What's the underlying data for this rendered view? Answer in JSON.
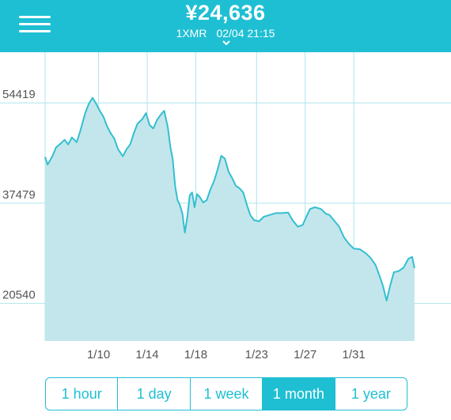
{
  "header": {
    "price": "¥24,636",
    "pair": "1XMR",
    "datetime": "02/04 21:15",
    "icons": {
      "menu": "hamburger-menu-icon",
      "expand": "chevron-down-icon"
    }
  },
  "colors": {
    "accent": "#1fbfd3",
    "line": "#33bfcf",
    "fill": "#c3e6ec",
    "grid": "#aee4ec"
  },
  "chart_data": {
    "type": "area",
    "title": "",
    "xlabel": "",
    "ylabel": "",
    "y_ticks": [
      54419,
      37479,
      20540
    ],
    "x_ticks": [
      "1/10",
      "1/14",
      "1/18",
      "1/23",
      "1/27",
      "1/31"
    ],
    "x_range_days": [
      5.6,
      39.0
    ],
    "ylim": [
      14200,
      63000
    ],
    "grid": true,
    "series": [
      {
        "points": [
          [
            5.6,
            45300
          ],
          [
            5.8,
            44000
          ],
          [
            6.2,
            45400
          ],
          [
            6.5,
            46900
          ],
          [
            6.9,
            47600
          ],
          [
            7.2,
            48200
          ],
          [
            7.5,
            47400
          ],
          [
            7.8,
            48600
          ],
          [
            8.2,
            47800
          ],
          [
            8.5,
            49700
          ],
          [
            8.9,
            52700
          ],
          [
            9.2,
            54300
          ],
          [
            9.5,
            55300
          ],
          [
            9.8,
            54300
          ],
          [
            10.1,
            53100
          ],
          [
            10.4,
            52100
          ],
          [
            10.7,
            50500
          ],
          [
            11.0,
            49300
          ],
          [
            11.3,
            48400
          ],
          [
            11.6,
            46600
          ],
          [
            12.0,
            45400
          ],
          [
            12.3,
            46600
          ],
          [
            12.6,
            47400
          ],
          [
            12.9,
            49300
          ],
          [
            13.2,
            50900
          ],
          [
            13.6,
            51700
          ],
          [
            13.9,
            52700
          ],
          [
            14.2,
            50700
          ],
          [
            14.5,
            50100
          ],
          [
            14.8,
            51500
          ],
          [
            15.1,
            52400
          ],
          [
            15.4,
            53100
          ],
          [
            15.7,
            50300
          ],
          [
            15.9,
            47100
          ],
          [
            16.1,
            44900
          ],
          [
            16.3,
            40400
          ],
          [
            16.5,
            38000
          ],
          [
            16.7,
            37100
          ],
          [
            16.9,
            35700
          ],
          [
            17.1,
            32500
          ],
          [
            17.3,
            35100
          ],
          [
            17.5,
            38800
          ],
          [
            17.7,
            39300
          ],
          [
            17.9,
            36800
          ],
          [
            18.1,
            39000
          ],
          [
            18.3,
            38600
          ],
          [
            18.6,
            37600
          ],
          [
            18.9,
            38000
          ],
          [
            19.2,
            39800
          ],
          [
            19.5,
            41200
          ],
          [
            19.8,
            43200
          ],
          [
            20.1,
            45500
          ],
          [
            20.4,
            45000
          ],
          [
            20.7,
            42800
          ],
          [
            21.0,
            41700
          ],
          [
            21.3,
            40400
          ],
          [
            21.6,
            40000
          ],
          [
            21.9,
            39300
          ],
          [
            22.2,
            37200
          ],
          [
            22.5,
            35400
          ],
          [
            22.8,
            34600
          ],
          [
            23.2,
            34400
          ],
          [
            23.6,
            35200
          ],
          [
            24.1,
            35500
          ],
          [
            24.6,
            35800
          ],
          [
            25.1,
            35800
          ],
          [
            25.6,
            35900
          ],
          [
            26.0,
            34500
          ],
          [
            26.4,
            33500
          ],
          [
            26.8,
            33800
          ],
          [
            27.1,
            35200
          ],
          [
            27.4,
            36500
          ],
          [
            27.8,
            36800
          ],
          [
            28.3,
            36500
          ],
          [
            28.7,
            35700
          ],
          [
            29.0,
            35500
          ],
          [
            29.4,
            34500
          ],
          [
            29.8,
            33500
          ],
          [
            30.2,
            31700
          ],
          [
            30.6,
            30600
          ],
          [
            31.0,
            29800
          ],
          [
            31.5,
            29700
          ],
          [
            32.0,
            29000
          ],
          [
            32.4,
            28200
          ],
          [
            32.8,
            27000
          ],
          [
            33.1,
            25300
          ],
          [
            33.4,
            23500
          ],
          [
            33.7,
            21000
          ],
          [
            34.0,
            23600
          ],
          [
            34.3,
            25800
          ],
          [
            34.7,
            26000
          ],
          [
            35.1,
            26600
          ],
          [
            35.5,
            28100
          ],
          [
            35.8,
            28400
          ],
          [
            36.0,
            26500
          ]
        ]
      }
    ]
  },
  "range_tabs": {
    "items": [
      {
        "label": "1 hour",
        "active": false
      },
      {
        "label": "1 day",
        "active": false
      },
      {
        "label": "1 week",
        "active": false
      },
      {
        "label": "1 month",
        "active": true
      },
      {
        "label": "1 year",
        "active": false
      }
    ]
  }
}
